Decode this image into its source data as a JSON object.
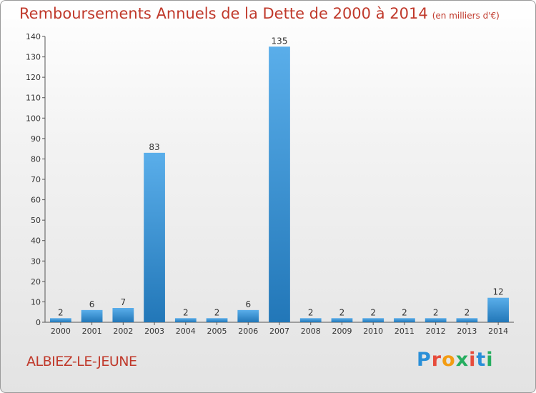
{
  "chart_data": {
    "type": "bar",
    "title": "Remboursements Annuels de la Dette de 2000 à 2014",
    "subtitle": "(en milliers d'€)",
    "categories": [
      "2000",
      "2001",
      "2002",
      "2003",
      "2004",
      "2005",
      "2006",
      "2007",
      "2008",
      "2009",
      "2010",
      "2011",
      "2012",
      "2013",
      "2014"
    ],
    "values": [
      2,
      6,
      7,
      83,
      2,
      2,
      6,
      135,
      2,
      2,
      2,
      2,
      2,
      2,
      12
    ],
    "ylim": [
      0,
      140
    ],
    "yticks": [
      0,
      10,
      20,
      30,
      40,
      50,
      60,
      70,
      80,
      90,
      100,
      110,
      120,
      130,
      140
    ],
    "grid": false,
    "bar_color": "#3a93d8"
  },
  "footer": {
    "city": "ALBIEZ-LE-JEUNE",
    "logo_letters": [
      "P",
      "r",
      "o",
      "x",
      "i",
      "t",
      "i"
    ],
    "logo_colors": [
      "#2a8fd8",
      "#e74c3c",
      "#f39c12",
      "#27ae60",
      "#e74c3c",
      "#2a8fd8",
      "#27ae60"
    ]
  }
}
